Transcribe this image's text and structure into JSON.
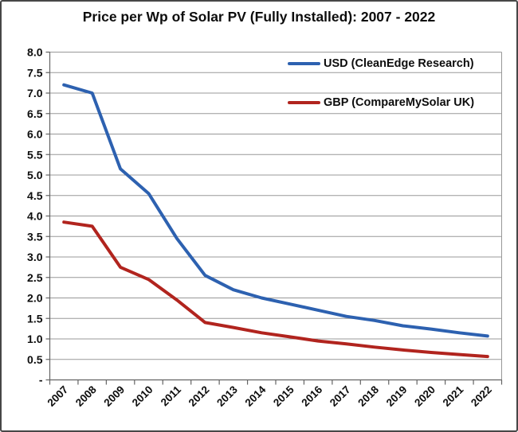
{
  "chart_data": {
    "type": "line",
    "title": "Price per Wp of Solar PV (Fully Installed): 2007 - 2022",
    "categories": [
      "2007",
      "2008",
      "2009",
      "2010",
      "2011",
      "2012",
      "2013",
      "2014",
      "2015",
      "2016",
      "2017",
      "2018",
      "2019",
      "2020",
      "2021",
      "2022"
    ],
    "series": [
      {
        "name": "USD (CleanEdge Research)",
        "color": "#2d61b0",
        "values": [
          7.2,
          7.0,
          5.15,
          4.55,
          3.45,
          2.55,
          2.2,
          2.0,
          1.85,
          1.7,
          1.55,
          1.45,
          1.32,
          1.24,
          1.15,
          1.07
        ]
      },
      {
        "name": "GBP (CompareMySolar UK)",
        "color": "#b1241e",
        "values": [
          3.85,
          3.75,
          2.75,
          2.45,
          1.95,
          1.4,
          1.28,
          1.15,
          1.05,
          0.95,
          0.88,
          0.8,
          0.73,
          0.67,
          0.62,
          0.57
        ]
      }
    ],
    "y_axis": {
      "min": 0,
      "max": 8,
      "step": 0.5,
      "tick_labels": [
        "8.0",
        "7.5",
        "7.0",
        "6.5",
        "6.0",
        "5.5",
        "5.0",
        "4.5",
        "4.0",
        "3.5",
        "3.0",
        "2.5",
        "2.0",
        "1.5",
        "1.0",
        "0.5",
        "-"
      ]
    },
    "x_axis": {
      "label_rotation_deg": -45
    },
    "grid": "horizontal",
    "legend_position": "inside-top-right",
    "colors": {
      "gridline": "#989898",
      "axis": "#646464",
      "text": "#0d0d0d",
      "frame_border": "#474747"
    }
  }
}
